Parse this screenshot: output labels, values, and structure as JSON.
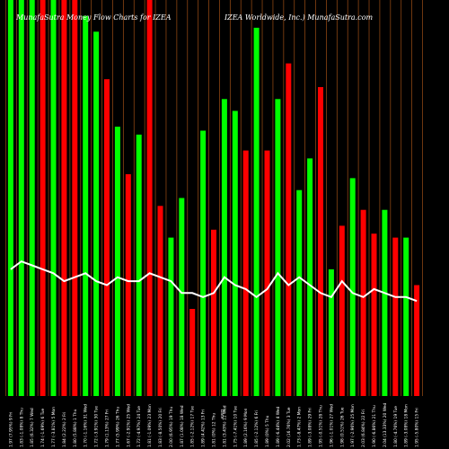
{
  "chart_data": {
    "type": "bar",
    "title_left": "MunafaSutra  Money Flow  Charts for IZEA",
    "title_right": "IZEA Worldwide,  Inc.) MunafaSutra.com",
    "mid_label": "Date",
    "xlabel": "",
    "ylabel": "",
    "grid": "vertical lines between bars",
    "colors": {
      "up": "#00ff00",
      "down": "#ff0000",
      "line": "#ffffff",
      "grid": "#8b4513",
      "background": "#000000"
    },
    "categories": [
      "1.97 (7.95%) 9 Fri",
      "1.83 (-1.08%) 8 Thu",
      "1.85 (6.32%) 7 Wed",
      "1.74 (-1.69%) 6 Tue",
      "1.77 (-3.81%) 5 Mon",
      "1.84 (2.22%) 2 Fri",
      "1.80 (5.88%) 1 Thu",
      "1.70 (-1.16%) 31 Wed",
      "1.72 (-3.91%) 30 Tue",
      "1.79 (1.13%) 27 Fri",
      "1.77 (5.99%) 26 Thu",
      "1.67 (-2.91%) 25 Wed",
      "1.72 (-4.97%) 24 Tue",
      "1.81 (-1.09%) 23 Mon",
      "1.83 (-8.50%) 20 Fri",
      "2.00 (6.95%) 19 Thu",
      "1.87 (1.08%) 18 Wed",
      "1.85 (-2.12%) 17 Tue",
      "1.89 (4.42%) 13 Fri",
      "1.81 (0%) 12 Thu",
      "1.81 (3.43%) 11 Wed",
      "1.75 (-7.41%) 10 Tue",
      "1.89 (2.16%) 9 Mon",
      "1.85 (-2.12%) 6 Fri",
      "1.89 (0%) 5 Thu",
      "1.89 (-6.44%) 4 Wed",
      "2.02 (16.76%) 3 Tue",
      "1.73 (-8.47%) 2 Mon",
      "1.89 (-3.08%) 29 Fri",
      "1.95 (-0.51%) 28 Thu",
      "1.96 (-1.01%) 27 Wed",
      "1.98 (0.51%) 26 Tue",
      "1.97 (-2.96%) 25 Mon",
      "2.03 (6.84%) 22 Fri",
      "1.90 (-6.86%) 21 Thu",
      "2.04 (13.33%) 20 Wed",
      "1.80 (-4.76%) 19 Tue",
      "1.89 (-3.08%) 18 Mon",
      "1.95 (-5.80%) 15 Fri"
    ],
    "directions": [
      "up",
      "up",
      "up",
      "down",
      "up",
      "down",
      "down",
      "up",
      "up",
      "down",
      "up",
      "down",
      "up",
      "down",
      "down",
      "up",
      "up",
      "down",
      "up",
      "down",
      "up",
      "up",
      "down",
      "up",
      "down",
      "up",
      "down",
      "up",
      "up",
      "down",
      "up",
      "down",
      "up",
      "down",
      "down",
      "up",
      "down",
      "up",
      "down"
    ],
    "values": [
      100,
      100,
      100,
      100,
      100,
      100,
      100,
      96,
      92,
      80,
      68,
      56,
      66,
      100,
      48,
      40,
      50,
      22,
      67,
      42,
      75,
      72,
      62,
      93,
      62,
      75,
      84,
      52,
      60,
      78,
      32,
      43,
      55,
      47,
      41,
      47,
      40,
      40,
      28
    ],
    "line_values": [
      32,
      34,
      33,
      32,
      31,
      29,
      30,
      31,
      29,
      28,
      30,
      29,
      29,
      31,
      30,
      29,
      26,
      26,
      25,
      26,
      30,
      28,
      27,
      25,
      27,
      31,
      28,
      30,
      28,
      26,
      25,
      29,
      26,
      25,
      27,
      26,
      25,
      25,
      24
    ],
    "ylim": [
      0,
      100
    ]
  }
}
